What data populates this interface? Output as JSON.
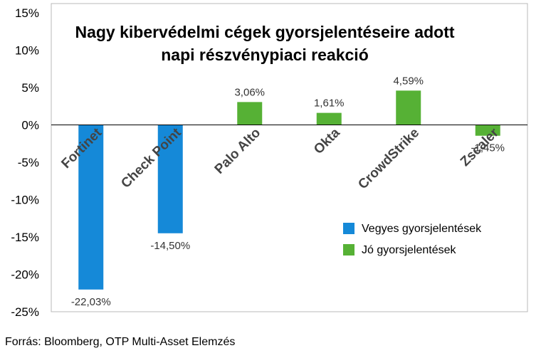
{
  "chart_data": {
    "type": "bar",
    "title_lines": [
      "Nagy kibervédelmi cégek gyorsjelentéseire adott",
      "napi részvénypiaci reakció"
    ],
    "categories": [
      "Fortinet",
      "Check Point",
      "Palo Alto",
      "Okta",
      "CrowdStrike",
      "Zscaler"
    ],
    "values": [
      -22.03,
      -14.5,
      3.06,
      1.61,
      4.59,
      -1.45
    ],
    "data_labels": [
      "-22,03%",
      "-14,50%",
      "3,06%",
      "1,61%",
      "4,59%",
      "-1,45%"
    ],
    "groups": [
      0,
      0,
      1,
      1,
      1,
      1
    ],
    "ylim": [
      -25,
      15
    ],
    "yticks": [
      15,
      10,
      5,
      0,
      -5,
      -10,
      -15,
      -20,
      -25
    ],
    "ytick_labels": [
      "15%",
      "10%",
      "5%",
      "0%",
      "-5%",
      "-10%",
      "-15%",
      "-20%",
      "-25%"
    ],
    "grid": false,
    "legend": {
      "placement": "bottom-right",
      "entries": [
        {
          "name": "Vegyes gyorsjelentések",
          "color": "#1589D8"
        },
        {
          "name": "Jó gyorsjelentések",
          "color": "#56B135"
        }
      ]
    }
  },
  "source": "Forrás: Bloomberg, OTP Multi-Asset Elemzés"
}
